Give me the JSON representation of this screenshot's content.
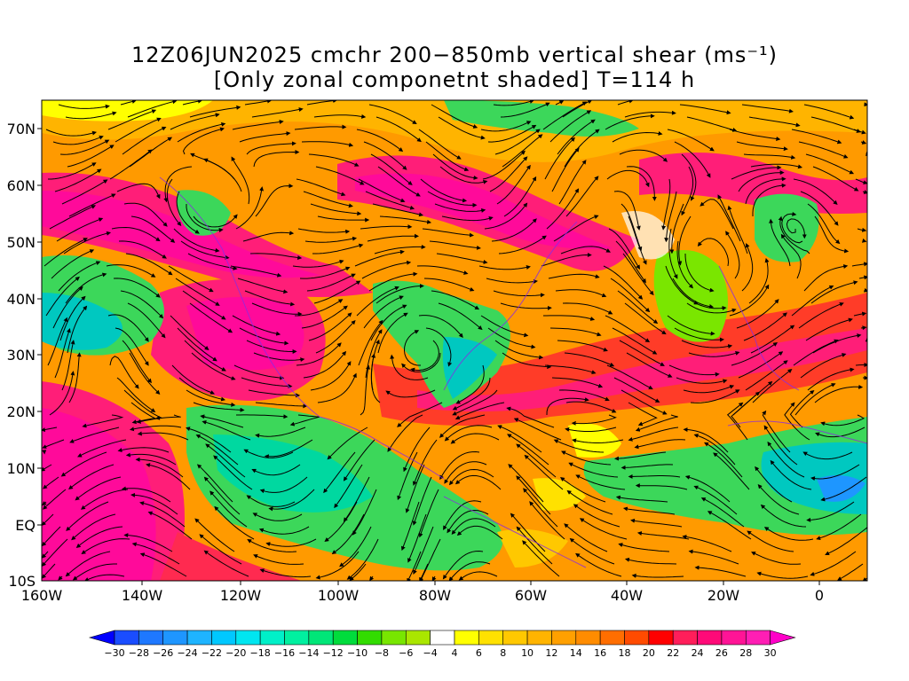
{
  "figure": {
    "title_line1": "12Z06JUN2025 cmchr 200−850mb vertical shear (ms⁻¹)",
    "title_line2": "[Only zonal componetnt shaded] T=114 h"
  },
  "map": {
    "lat_labels": [
      "70N",
      "60N",
      "50N",
      "40N",
      "30N",
      "20N",
      "10N",
      "EQ",
      "10S"
    ],
    "lon_labels": [
      "160W",
      "140W",
      "120W",
      "100W",
      "80W",
      "60W",
      "40W",
      "20W",
      "0"
    ],
    "lat_range": [
      -10,
      75
    ],
    "lon_range": [
      -160,
      10
    ],
    "content": "streamlines of 200-850mb vertical shear with zonal component shaded"
  },
  "colorbar": {
    "labels": [
      "−30",
      "−28",
      "−26",
      "−24",
      "−22",
      "−20",
      "−18",
      "−16",
      "−14",
      "−12",
      "−10",
      "−8",
      "−6",
      "−4",
      "4",
      "6",
      "8",
      "10",
      "12",
      "14",
      "16",
      "18",
      "20",
      "22",
      "24",
      "26",
      "28",
      "30"
    ],
    "colors": [
      "#0000ff",
      "#1a4dff",
      "#1e78ff",
      "#1e96ff",
      "#1eb4ff",
      "#00c8ff",
      "#00e6f0",
      "#00f0c8",
      "#00f0a0",
      "#00e678",
      "#00dc3c",
      "#32dc00",
      "#78e600",
      "#aae600",
      "#ffffff",
      "#ffff00",
      "#ffe100",
      "#ffc800",
      "#ffb400",
      "#ffa000",
      "#ff8c00",
      "#ff6e00",
      "#ff4b00",
      "#ff0000",
      "#ff1e5a",
      "#ff0a78",
      "#ff1496",
      "#ff1eb4",
      "#ff00c8"
    ]
  }
}
